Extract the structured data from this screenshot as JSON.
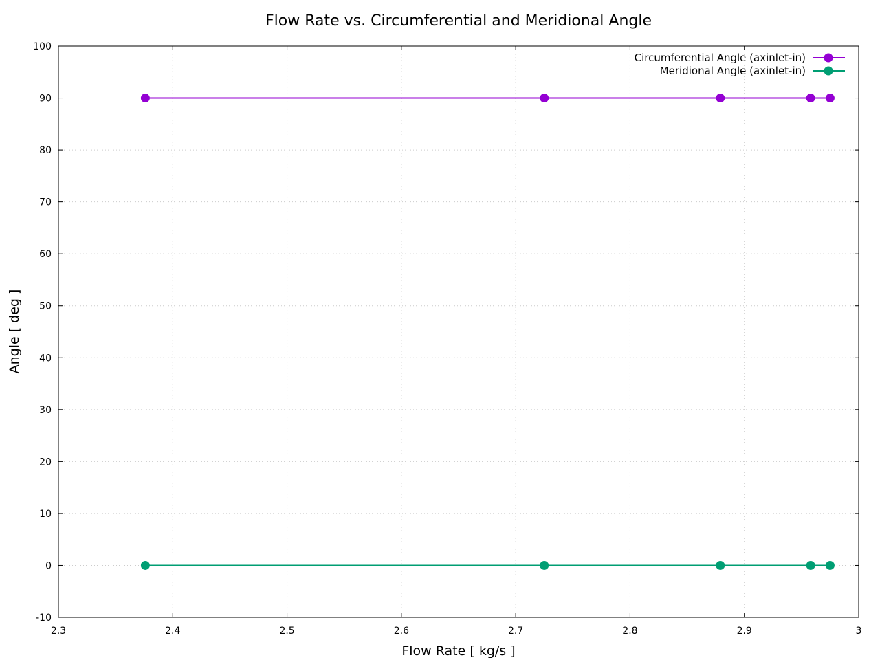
{
  "chart_data": {
    "type": "line",
    "title": "Flow Rate vs. Circumferential and Meridional Angle",
    "xlabel": "Flow Rate [ kg/s ]",
    "ylabel": "Angle [ deg ]",
    "xlim": [
      2.3,
      3.0
    ],
    "ylim": [
      -10,
      100
    ],
    "xticks": [
      "2.3",
      "2.4",
      "2.5",
      "2.6",
      "2.7",
      "2.8",
      "2.9",
      "3"
    ],
    "yticks": [
      "-10",
      "0",
      "10",
      "20",
      "30",
      "40",
      "50",
      "60",
      "70",
      "80",
      "90",
      "100"
    ],
    "grid": true,
    "legend_position": "top-right",
    "x": [
      2.376,
      2.725,
      2.879,
      2.958,
      2.975
    ],
    "series": [
      {
        "name": "Circumferential Angle (axinlet-in)",
        "color": "#9400d3",
        "values": [
          90,
          90,
          90,
          90,
          90
        ]
      },
      {
        "name": "Meridional Angle (axinlet-in)",
        "color": "#009e73",
        "values": [
          0,
          0,
          0,
          0,
          0
        ]
      }
    ]
  }
}
